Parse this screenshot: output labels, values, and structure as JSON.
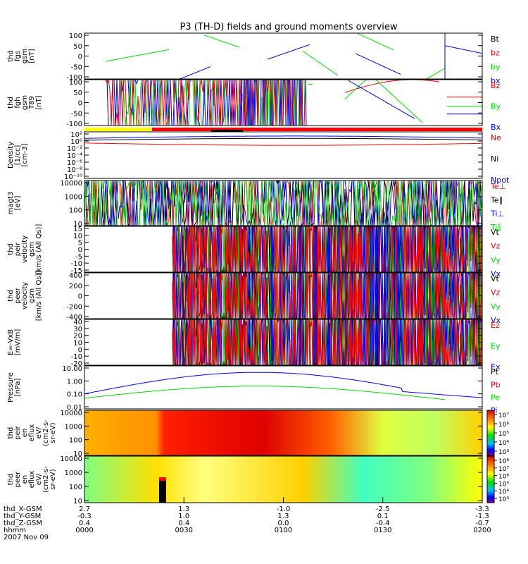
{
  "title": "P3 (TH-D) fields and ground moments overview",
  "colors": {
    "black": "#000000",
    "red": "#ff0000",
    "green": "#00dd00",
    "blue": "#0000ff",
    "yellow": "#ffff00"
  },
  "chart_data": {
    "type": "line",
    "time_range": [
      "0000",
      "0200"
    ],
    "panels": [
      {
        "id": "fgs",
        "ylabel": [
          "thd",
          "fgs",
          "gsm",
          "[nT]"
        ],
        "yticks": [
          "100",
          "50",
          "0",
          "-50",
          "-100"
        ],
        "legend": [
          {
            "name": "Bt",
            "color": "black"
          },
          {
            "name": "bz",
            "color": "red"
          },
          {
            "name": "by",
            "color": "green"
          },
          {
            "name": "bx",
            "color": "blue"
          }
        ]
      },
      {
        "id": "fgh",
        "ylabel": [
          "thd",
          "fgh",
          "gsm",
          "T89",
          "[nT]"
        ],
        "yticks": [
          "100",
          "50",
          "0",
          "-50",
          "-100"
        ],
        "legend": [
          {
            "name": "Bz",
            "color": "red"
          },
          {
            "name": "By",
            "color": "green"
          },
          {
            "name": "Bx",
            "color": "blue"
          }
        ]
      },
      {
        "id": "density",
        "ylabel": [
          "Density",
          "[1/cc]",
          "[cm-3]"
        ],
        "yticks": [
          "10²",
          "10⁰",
          "10⁻²",
          "10⁻⁴",
          "10⁻⁶",
          "10⁻⁸",
          "10⁻¹⁰"
        ],
        "legend": [
          {
            "name": "Ne",
            "color": "red"
          },
          {
            "name": "Ni",
            "color": "black"
          },
          {
            "name": "Npot",
            "color": "blue"
          }
        ]
      },
      {
        "id": "temp",
        "ylabel": [
          "magt3",
          "[eV]"
        ],
        "yticks": [
          "10000",
          "1000",
          "100",
          "10"
        ],
        "legend": [
          {
            "name": "Te⊥",
            "color": "red"
          },
          {
            "name": "Te∥",
            "color": "black"
          },
          {
            "name": "Ti⊥",
            "color": "blue"
          },
          {
            "name": "Ti∥",
            "color": "green"
          }
        ]
      },
      {
        "id": "vi",
        "ylabel": [
          "thd",
          "peir",
          "velocity",
          "gsm",
          "[km/s (All Qs)]"
        ],
        "yticks": [
          "15",
          "10",
          "5",
          "0",
          "-5",
          "-10",
          "-15"
        ],
        "legend": [
          {
            "name": "Vt",
            "color": "black"
          },
          {
            "name": "Vz",
            "color": "red"
          },
          {
            "name": "Vy",
            "color": "green"
          },
          {
            "name": "Vx",
            "color": "blue"
          }
        ]
      },
      {
        "id": "ve",
        "ylabel": [
          "thd",
          "peer",
          "velocity",
          "gsm",
          "[km/s (All Qs)]"
        ],
        "yticks": [
          "400",
          "200",
          "0",
          "-200",
          "-400"
        ],
        "legend": [
          {
            "name": "Vt",
            "color": "black"
          },
          {
            "name": "Vz",
            "color": "red"
          },
          {
            "name": "Vy",
            "color": "green"
          },
          {
            "name": "Vx",
            "color": "blue"
          }
        ]
      },
      {
        "id": "efield",
        "ylabel": [
          "E=-VxB",
          "[mV/m]"
        ],
        "yticks": [
          "40",
          "30",
          "20",
          "10",
          "0",
          "-10",
          "-20"
        ],
        "legend": [
          {
            "name": "Ez",
            "color": "red"
          },
          {
            "name": "Ey",
            "color": "green"
          },
          {
            "name": "Ex",
            "color": "blue"
          }
        ]
      },
      {
        "id": "pressure",
        "ylabel": [
          "Pressure",
          "[nPa]"
        ],
        "yticks": [
          "10.00",
          "1.00",
          "0.10",
          "0.01"
        ],
        "legend": [
          {
            "name": "Pt",
            "color": "black"
          },
          {
            "name": "Pb",
            "color": "red"
          },
          {
            "name": "Pe",
            "color": "green"
          },
          {
            "name": "Pi",
            "color": "blue"
          }
        ]
      },
      {
        "id": "ion_spec",
        "ylabel": [
          "thd",
          "peir",
          "en",
          "eflux",
          "eV/",
          "(cm2-s-",
          "sr-eV)"
        ],
        "yticks": [
          "10000",
          "1000",
          "100",
          "10"
        ],
        "colorbar": [
          "10⁷",
          "10⁶",
          "10⁵",
          "10⁴",
          "10³"
        ]
      },
      {
        "id": "elec_spec",
        "ylabel": [
          "thd",
          "peer",
          "en",
          "eflux",
          "eV/",
          "(cm2-s-",
          "sr-eV)"
        ],
        "yticks": [
          "10000",
          "1000",
          "100",
          "10"
        ],
        "colorbar": [
          "10⁸",
          "10⁷",
          "10⁶",
          "10⁵",
          "10⁴",
          "10³"
        ]
      }
    ],
    "x_axis": {
      "row_labels": [
        "thd_X-GSM",
        "thd_Y-GSM",
        "thd_Z-GSM",
        "hhmm",
        "2007 Nov 09"
      ],
      "ticks": [
        {
          "values": [
            "2.7",
            "-0.3",
            "0.4",
            "0000"
          ]
        },
        {
          "values": [
            "1.3",
            "1.0",
            "0.4",
            "0030"
          ]
        },
        {
          "values": [
            "-1.0",
            "1.3",
            "0.0",
            "0100"
          ]
        },
        {
          "values": [
            "-2.5",
            "0.1",
            "-0.4",
            "0130"
          ]
        },
        {
          "values": [
            "-3.3",
            "-1.3",
            "-0.7",
            "0200"
          ]
        }
      ]
    }
  }
}
